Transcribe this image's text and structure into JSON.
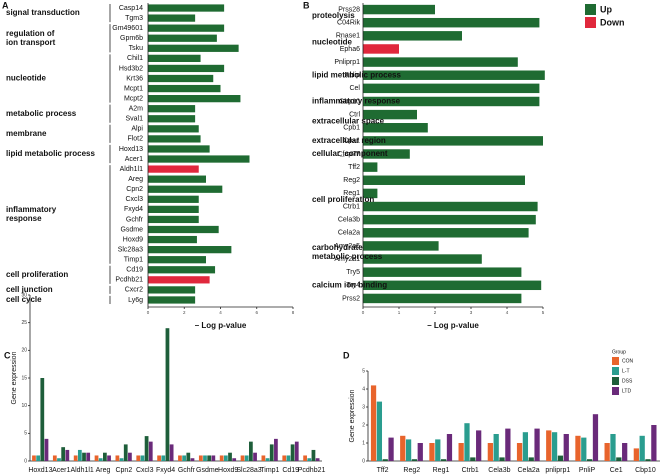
{
  "chart_data": [
    {
      "type": "hbar",
      "label": "A",
      "xlabel": "– Log p-value",
      "xlim": [
        0,
        8
      ],
      "xticks": [
        0,
        2,
        4,
        6,
        8
      ],
      "groups": [
        {
          "name": [
            "signal transduction"
          ],
          "categories": [
            "Casp14",
            "Tgm3"
          ],
          "values": [
            4.2,
            2.6
          ],
          "colors": [
            "#1f6b32",
            "#1f6b32"
          ]
        },
        {
          "name": [
            "regulation of",
            "ion transport"
          ],
          "categories": [
            "Gm49601",
            "Gpm6b",
            "Tsku"
          ],
          "values": [
            4.2,
            3.8,
            5.0
          ],
          "colors": [
            "#1f6b32",
            "#1f6b32",
            "#1f6b32"
          ]
        },
        {
          "name": [
            "nucleotide"
          ],
          "categories": [
            "Chil1",
            "Hsd3b2",
            "Krt36",
            "Mcpt1",
            "Mcpt2"
          ],
          "values": [
            2.9,
            4.2,
            3.6,
            4.0,
            5.1
          ],
          "colors": [
            "#1f6b32",
            "#1f6b32",
            "#1f6b32",
            "#1f6b32",
            "#1f6b32"
          ]
        },
        {
          "name": [
            "metabolic process"
          ],
          "categories": [
            "A2m",
            "Sval1"
          ],
          "values": [
            2.6,
            2.6
          ],
          "colors": [
            "#1f6b32",
            "#1f6b32"
          ]
        },
        {
          "name": [
            "membrane"
          ],
          "categories": [
            "Alpi",
            "Flot2"
          ],
          "values": [
            2.8,
            2.9
          ],
          "colors": [
            "#1f6b32",
            "#1f6b32"
          ]
        },
        {
          "name": [
            "lipid metabolic process"
          ],
          "categories": [
            "Hoxd13",
            "Acer1"
          ],
          "values": [
            3.4,
            5.6
          ],
          "colors": [
            "#1f6b32",
            "#1f6b32"
          ]
        },
        {
          "name": [
            "inflammatory",
            "response"
          ],
          "categories": [
            "Aldh1l1",
            "Areg",
            "Cpn2",
            "Cxcl3",
            "Fxyd4",
            "Gchfr",
            "Gsdme",
            "Hoxd9",
            "Slc28a3",
            "Timp1"
          ],
          "values": [
            2.8,
            3.2,
            4.1,
            2.8,
            2.8,
            2.8,
            3.9,
            2.7,
            4.6,
            3.2
          ],
          "colors": [
            "#e0283c",
            "#1f6b32",
            "#1f6b32",
            "#1f6b32",
            "#1f6b32",
            "#1f6b32",
            "#1f6b32",
            "#1f6b32",
            "#1f6b32",
            "#1f6b32"
          ]
        },
        {
          "name": [
            "cell proliferation"
          ],
          "categories": [
            "Cd19",
            "Pcdhb21"
          ],
          "values": [
            3.7,
            3.4
          ],
          "colors": [
            "#1f6b32",
            "#e0283c"
          ]
        },
        {
          "name": [
            "cell junction"
          ],
          "categories": [
            "Cxcr2"
          ],
          "values": [
            2.6
          ],
          "colors": [
            "#1f6b32"
          ]
        },
        {
          "name": [
            "cell cycle"
          ],
          "categories": [
            "Ly6g"
          ],
          "values": [
            2.6
          ],
          "colors": [
            "#1f6b32"
          ]
        }
      ]
    },
    {
      "type": "hbar",
      "label": "B",
      "xlabel": "– Log p-value",
      "xlim": [
        0,
        5
      ],
      "xticks": [
        0,
        1,
        2,
        3,
        4,
        5
      ],
      "legend": [
        {
          "name": "Up",
          "color": "#1f6b32"
        },
        {
          "name": "Down",
          "color": "#e0283c"
        }
      ],
      "groups": [
        {
          "name": [
            "proteolysis"
          ],
          "categories": [
            "Prss28",
            "C04Rik"
          ],
          "values": [
            2.0,
            4.9
          ],
          "colors": [
            "#1f6b32",
            "#1f6b32"
          ]
        },
        {
          "name": [
            "nucleotide"
          ],
          "categories": [
            "Rnase1",
            "Epha6"
          ],
          "values": [
            2.75,
            1.0
          ],
          "colors": [
            "#1f6b32",
            "#e0283c"
          ]
        },
        {
          "name": [
            "lipid metabolic process"
          ],
          "categories": [
            "Pnliprp1",
            "Pnlip",
            "Cel"
          ],
          "values": [
            4.3,
            5.05,
            4.9
          ],
          "colors": [
            "#1f6b32",
            "#1f6b32",
            "#1f6b32"
          ]
        },
        {
          "name": [
            "inflammatory response"
          ],
          "categories": [
            "Gbp10"
          ],
          "values": [
            4.9
          ],
          "colors": [
            "#1f6b32"
          ]
        },
        {
          "name": [
            "extracellular space"
          ],
          "categories": [
            "Ctrl",
            "Cpb1"
          ],
          "values": [
            1.5,
            1.8
          ],
          "colors": [
            "#1f6b32",
            "#1f6b32"
          ]
        },
        {
          "name": [
            "extracellular region"
          ],
          "categories": [
            "Cpa1"
          ],
          "values": [
            5.0
          ],
          "colors": [
            "#1f6b32"
          ]
        },
        {
          "name": [
            "cellular_component"
          ],
          "categories": [
            "Cfap77"
          ],
          "values": [
            1.3
          ],
          "colors": [
            "#1f6b32"
          ]
        },
        {
          "name": [
            "cell proliferation"
          ],
          "categories": [
            "Tff2",
            "Reg2",
            "Reg1",
            "Ctrb1",
            "Cela3b",
            "Cela2a"
          ],
          "values": [
            0.4,
            4.5,
            0.4,
            4.85,
            4.8,
            4.6
          ],
          "colors": [
            "#1f6b32",
            "#1f6b32",
            "#1f6b32",
            "#1f6b32",
            "#1f6b32",
            "#1f6b32"
          ]
        },
        {
          "name": [
            "carbohydrate",
            "metabolic process"
          ],
          "categories": [
            "Amy2a5",
            "Amy2a1"
          ],
          "values": [
            2.1,
            3.3
          ],
          "colors": [
            "#1f6b32",
            "#1f6b32"
          ]
        },
        {
          "name": [
            "calcium ion binding"
          ],
          "categories": [
            "Try5",
            "Try4",
            "Prss2"
          ],
          "values": [
            4.4,
            4.95,
            4.4
          ],
          "colors": [
            "#1f6b32",
            "#1f6b32",
            "#1f6b32"
          ]
        }
      ]
    },
    {
      "type": "grouped",
      "label": "C",
      "ylabel": "Gene expression",
      "ylim": [
        0,
        30
      ],
      "yticks": [
        0,
        5,
        10,
        15,
        20,
        25,
        30
      ],
      "categories": [
        "Hoxd13",
        "Acer1",
        "Aldh1l1",
        "Areg",
        "Cpn2",
        "Cxcl3",
        "Fxyd4",
        "Gchfr",
        "Gsdme",
        "Hoxd9",
        "Slc28a3",
        "Timp1",
        "Cd19",
        "Pcdhb21"
      ],
      "series": [
        {
          "color": "#e8642c",
          "values": [
            1,
            1,
            1,
            1,
            1,
            1,
            1,
            1,
            1,
            1,
            1,
            1,
            1,
            1
          ]
        },
        {
          "color": "#2a9d8f",
          "values": [
            1,
            0.5,
            2,
            0.5,
            0.5,
            1,
            1,
            1,
            1,
            1,
            1,
            0.5,
            1,
            0.5
          ]
        },
        {
          "color": "#1e5e3a",
          "values": [
            15,
            2.5,
            1.5,
            1.5,
            3,
            4.5,
            24,
            1.5,
            1,
            1.5,
            3.5,
            3,
            3,
            2
          ]
        },
        {
          "color": "#6a2a7a",
          "values": [
            4,
            2,
            1.5,
            1,
            1.5,
            3.5,
            3,
            0.5,
            1,
            0.5,
            1.5,
            4,
            3.5,
            0.5
          ]
        }
      ]
    },
    {
      "type": "grouped",
      "label": "D",
      "ylabel": "Gene expression",
      "ylim": [
        0,
        5
      ],
      "yticks": [
        0,
        1,
        2,
        3,
        4,
        5
      ],
      "legend_title": "Group",
      "categories": [
        "Tff2",
        "Reg2",
        "Reg1",
        "Ctrb1",
        "Cela3b",
        "Cela2a",
        "pnliprp1",
        "PnliP",
        "Ce1",
        "Cbp10"
      ],
      "series": [
        {
          "name": "CON",
          "color": "#e8642c",
          "values": [
            4.2,
            1.4,
            1.0,
            1.0,
            1.0,
            1.0,
            1.7,
            1.4,
            1.0,
            0.7
          ]
        },
        {
          "name": "L-T",
          "color": "#2a9d8f",
          "values": [
            3.3,
            1.2,
            1.2,
            2.1,
            1.5,
            1.6,
            1.6,
            1.3,
            1.5,
            1.4
          ]
        },
        {
          "name": "DSS",
          "color": "#1e5e3a",
          "values": [
            0.1,
            0.1,
            0.1,
            0.2,
            0.2,
            0.2,
            0.3,
            0.1,
            0.2,
            0.1
          ]
        },
        {
          "name": "LTD",
          "color": "#6a2a7a",
          "values": [
            1.3,
            1.0,
            1.5,
            1.7,
            1.8,
            1.8,
            1.5,
            2.6,
            1.0,
            2.0
          ]
        }
      ]
    }
  ]
}
